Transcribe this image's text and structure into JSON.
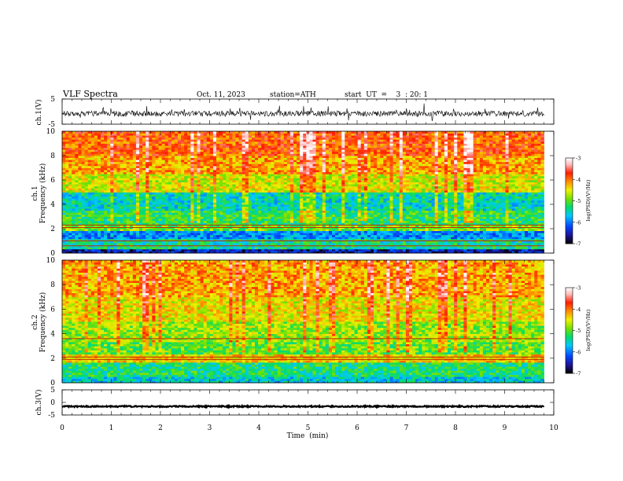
{
  "header": {
    "title": "VLF  Spectra",
    "date": "Oct. 11, 2023",
    "station": "station=ATH",
    "start": "start  UT  =    3  : 20: 1"
  },
  "colors": {
    "trace": "#000000",
    "colormap": [
      "#ffffff",
      "#000000",
      "#1a1aa8",
      "#0044ff",
      "#00c8ff",
      "#00dd66",
      "#66e000",
      "#f0f000",
      "#ff8800",
      "#ff1a00",
      "#ffd0d0",
      "#ffffff"
    ]
  },
  "chart_data": [
    {
      "id": "ch1-waveform",
      "type": "line",
      "ylabel": "ch.1(V)",
      "ylim": [
        -5,
        5
      ],
      "yticks": [
        "5",
        "-5"
      ],
      "xlim": [
        0,
        10
      ],
      "description_level": "noisy broadband signal around -1 V"
    },
    {
      "id": "ch1-spectrogram",
      "type": "heatmap",
      "ylabel_line1": "ch.1",
      "ylabel_line2": "Frequency  (kHz)",
      "ylim": [
        0,
        10
      ],
      "yticks": [
        "0",
        "2",
        "4",
        "6",
        "8",
        "10"
      ],
      "xlim": [
        0,
        10
      ],
      "colorbar": {
        "label": "log(PSD)(V²/Hz)",
        "range": [
          -7,
          -3
        ],
        "ticks": [
          "-3",
          "-4",
          "-5",
          "-6",
          "-7"
        ]
      },
      "bands": [
        {
          "from": 0.0,
          "to": 0.4,
          "level": -6.5
        },
        {
          "from": 0.4,
          "to": 1.2,
          "level": -5.4
        },
        {
          "from": 1.2,
          "to": 1.8,
          "level": -5.9
        },
        {
          "from": 1.8,
          "to": 2.4,
          "level": -4.9
        },
        {
          "from": 2.4,
          "to": 3.5,
          "level": -5.2
        },
        {
          "from": 3.5,
          "to": 5.0,
          "level": -5.5
        },
        {
          "from": 5.0,
          "to": 6.5,
          "level": -4.6
        },
        {
          "from": 6.5,
          "to": 8.0,
          "level": -4.2
        },
        {
          "from": 8.0,
          "to": 10.0,
          "level": -3.9
        }
      ],
      "lines_khz": [
        0.6,
        1.0,
        2.1,
        2.3
      ]
    },
    {
      "id": "ch2-spectrogram",
      "type": "heatmap",
      "ylabel_line1": "ch.2",
      "ylabel_line2": "Frequency  (kHz)",
      "ylim": [
        0,
        10
      ],
      "yticks": [
        "0",
        "2",
        "4",
        "6",
        "8",
        "10"
      ],
      "xlim": [
        0,
        10
      ],
      "colorbar": {
        "label": "log(PSD)(V²/Hz)",
        "range": [
          -7,
          -3
        ],
        "ticks": [
          "-3",
          "-4",
          "-5",
          "-6",
          "-7"
        ]
      },
      "bands": [
        {
          "from": 0.0,
          "to": 0.5,
          "level": -5.6
        },
        {
          "from": 0.5,
          "to": 1.6,
          "level": -5.3
        },
        {
          "from": 1.6,
          "to": 2.4,
          "level": -4.4
        },
        {
          "from": 2.4,
          "to": 3.4,
          "level": -5.0
        },
        {
          "from": 3.4,
          "to": 5.0,
          "level": -4.8
        },
        {
          "from": 5.0,
          "to": 7.0,
          "level": -4.5
        },
        {
          "from": 7.0,
          "to": 10.0,
          "level": -4.2
        }
      ],
      "lines_khz": [
        1.9,
        2.1,
        3.6
      ]
    },
    {
      "id": "ch3-waveform",
      "type": "line",
      "ylabel": "ch.3(V)",
      "ylim": [
        -5,
        5
      ],
      "yticks": [
        "5",
        "0",
        "-5"
      ],
      "xlim": [
        0,
        10
      ],
      "description_level": "flat trace near -1.5 V"
    }
  ],
  "xaxis": {
    "label": "Time  (min)",
    "ticks": [
      "0",
      "1",
      "2",
      "3",
      "4",
      "5",
      "6",
      "7",
      "8",
      "9",
      "10"
    ],
    "data_end_min": 9.8
  }
}
